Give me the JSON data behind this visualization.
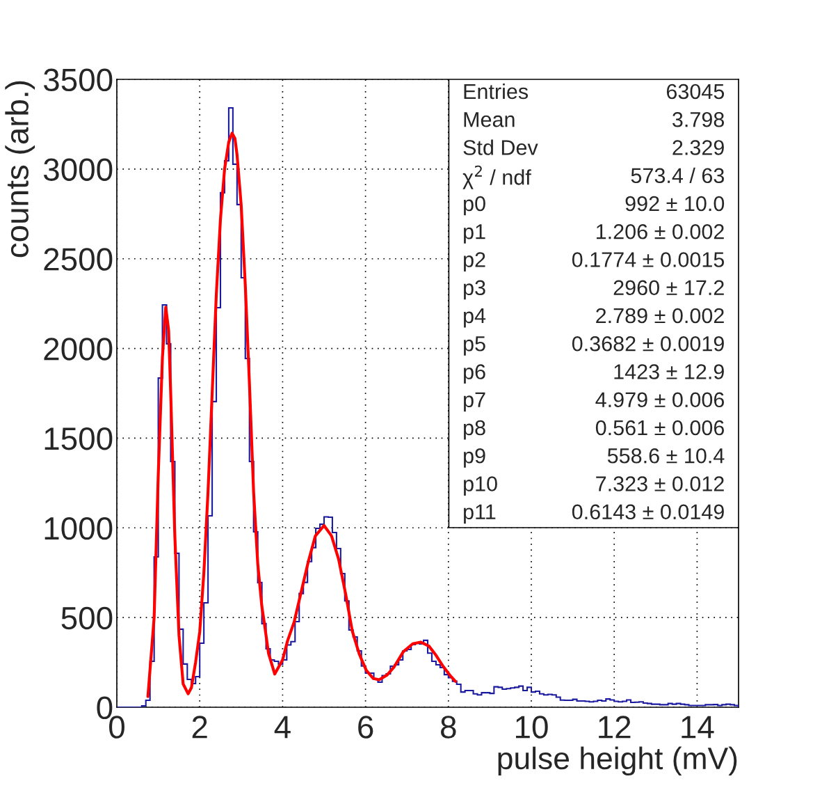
{
  "chart_data": {
    "type": "histogram",
    "xlabel": "pulse height (mV)",
    "ylabel": "counts (arb.)",
    "xlim": [
      0,
      15
    ],
    "ylim": [
      0,
      3500
    ],
    "xticks": [
      0,
      2,
      4,
      6,
      8,
      10,
      12,
      14
    ],
    "yticks": [
      0,
      500,
      1000,
      1500,
      2000,
      2500,
      3000,
      3500
    ],
    "grid": true,
    "bins": [
      0,
      0.1,
      0.2,
      0.3,
      0.4,
      0.5,
      0.6,
      0.7,
      0.8,
      0.9,
      1,
      1.1,
      1.2,
      1.3,
      1.4,
      1.5,
      1.6,
      1.7,
      1.8,
      1.9,
      2,
      2.1,
      2.2,
      2.3,
      2.4,
      2.5,
      2.6,
      2.7,
      2.8,
      2.9,
      3,
      3.1,
      3.2,
      3.3,
      3.4,
      3.5,
      3.6,
      3.7,
      3.8,
      3.9,
      4,
      4.1,
      4.2,
      4.3,
      4.4,
      4.5,
      4.6,
      4.7,
      4.8,
      4.9,
      5,
      5.1,
      5.2,
      5.3,
      5.4,
      5.5,
      5.6,
      5.7,
      5.8,
      5.9,
      6,
      6.1,
      6.2,
      6.3,
      6.4,
      6.5,
      6.6,
      6.7,
      6.8,
      6.9,
      7,
      7.1,
      7.2,
      7.3,
      7.4,
      7.5,
      7.6,
      7.7,
      7.8,
      7.9,
      8,
      8.1,
      8.2,
      8.3,
      8.4,
      8.5,
      8.6,
      8.7,
      8.8,
      8.9,
      9,
      9.1,
      9.2,
      9.3,
      9.4,
      9.5,
      9.6,
      9.7,
      9.8,
      9.9,
      10,
      10.1,
      10.2,
      10.3,
      10.4,
      10.5,
      10.6,
      10.7,
      10.8,
      10.9,
      11,
      11.1,
      11.2,
      11.3,
      11.4,
      11.5,
      11.6,
      11.7,
      11.8,
      11.9,
      12,
      12.1,
      12.2,
      12.3,
      12.4,
      12.5,
      12.6,
      12.7,
      12.8,
      12.9,
      13,
      13.1,
      13.2,
      13.3,
      13.4,
      13.5,
      13.6,
      13.7,
      13.8,
      13.9,
      14,
      14.1,
      14.2,
      14.3,
      14.4,
      14.5,
      14.6,
      14.7,
      14.8,
      14.9,
      15
    ],
    "series": [
      {
        "color": "#1a1aa0",
        "values": [
          0,
          0,
          0,
          0,
          0,
          0,
          8,
          39,
          256,
          838,
          1835,
          2243,
          2026,
          1370,
          858,
          435,
          241,
          155,
          132,
          171,
          357,
          582,
          1067,
          1704,
          2227,
          2868,
          3046,
          3341,
          3027,
          2802,
          2394,
          1944,
          1370,
          978,
          695,
          466,
          326,
          264,
          256,
          240,
          264,
          347,
          366,
          477,
          634,
          696,
          812,
          890,
          997,
          1020,
          1061,
          1059,
          974,
          885,
          745,
          593,
          431,
          392,
          314,
          230,
          190,
          190,
          155,
          140,
          176,
          186,
          229,
          237,
          264,
          314,
          322,
          349,
          360,
          353,
          373,
          302,
          256,
          237,
          221,
          182,
          165,
          145,
          128,
          85,
          93,
          93,
          75,
          69,
          81,
          81,
          77,
          114,
          111,
          101,
          104,
          108,
          111,
          118,
          93,
          111,
          85,
          89,
          75,
          69,
          72,
          69,
          56,
          40,
          39,
          39,
          44,
          35,
          35,
          33,
          30,
          33,
          39,
          35,
          46,
          41,
          33,
          30,
          33,
          41,
          27,
          28,
          30,
          23,
          21,
          17,
          17,
          14,
          14,
          21,
          17,
          21,
          17,
          14,
          10,
          10,
          10,
          10,
          14,
          14,
          15,
          10,
          14,
          17,
          14,
          10
        ]
      },
      {
        "type": "line",
        "color": "#ff0000",
        "x": [
          0.75,
          0.9,
          1.0,
          1.1,
          1.18,
          1.25,
          1.3,
          1.4,
          1.5,
          1.6,
          1.72,
          1.8,
          1.9,
          2.0,
          2.1,
          2.2,
          2.3,
          2.4,
          2.5,
          2.6,
          2.7,
          2.78,
          2.85,
          2.9,
          3.0,
          3.1,
          3.2,
          3.3,
          3.4,
          3.5,
          3.56,
          3.66,
          3.81,
          4.0,
          4.12,
          4.28,
          4.45,
          4.62,
          4.79,
          5.0,
          5.18,
          5.35,
          5.52,
          5.68,
          5.85,
          6.02,
          6.19,
          6.33,
          6.52,
          6.69,
          6.91,
          7.14,
          7.33,
          7.53,
          7.7,
          7.86,
          8.03,
          8.17
        ],
        "values": [
          60,
          500,
          1300,
          1950,
          2230,
          2100,
          1750,
          950,
          400,
          130,
          75,
          110,
          250,
          420,
          750,
          1200,
          1750,
          2300,
          2720,
          3000,
          3150,
          3200,
          3170,
          3080,
          2800,
          2350,
          1800,
          1200,
          800,
          560,
          467,
          300,
          185,
          265,
          371,
          477,
          645,
          812,
          955,
          1013,
          955,
          826,
          632,
          425,
          296,
          205,
          160,
          153,
          180,
          225,
          309,
          354,
          363,
          341,
          290,
          232,
          180,
          144
        ]
      }
    ],
    "annotations": [
      "Entries",
      "63045",
      "Mean",
      "3.798",
      "Std Dev",
      "2.329",
      "χ$^{2}$ / ndf",
      "573.4 / 63",
      "p0",
      "992 ± 10.0",
      "p1",
      "1.206 ± 0.002",
      "p2",
      "0.1774 ± 0.0015",
      "p3",
      "2960 ± 17.2",
      "p4",
      "2.789 ± 0.002",
      "p5",
      "0.3682 ± 0.0019",
      "p6",
      "1423 ± 12.9",
      "p7",
      "4.979 ± 0.006",
      "p8",
      "0.561 ± 0.006",
      "p9",
      "558.6 ± 10.4",
      "p10",
      "7.323 ± 0.012",
      "p11",
      "0.6143 ± 0.0149"
    ]
  }
}
